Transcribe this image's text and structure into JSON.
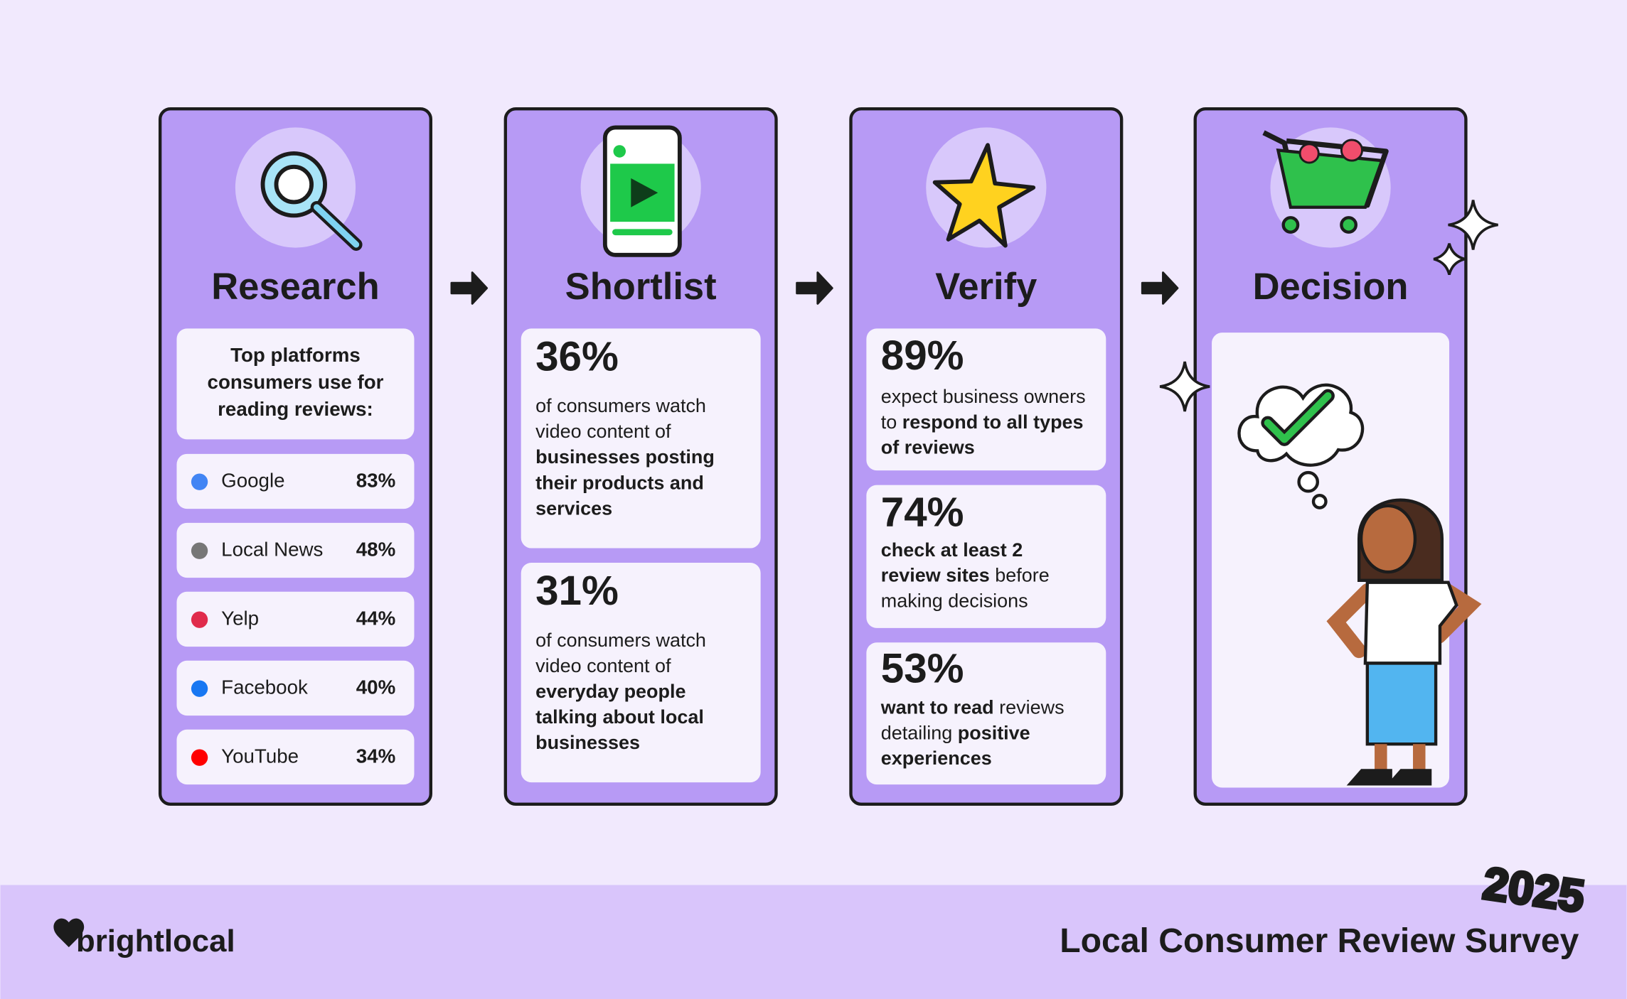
{
  "columns": [
    {
      "title": "Research",
      "intro": [
        "Top platforms",
        "consumers use for",
        "reading reviews:"
      ],
      "platforms": [
        {
          "name": "Google",
          "share": "83%"
        },
        {
          "name": "Local News",
          "share": "48%"
        },
        {
          "name": "Yelp",
          "share": "44%"
        },
        {
          "name": "Facebook",
          "share": "40%"
        },
        {
          "name": "YouTube",
          "share": "34%"
        }
      ]
    },
    {
      "title": "Shortlist",
      "stats": [
        {
          "figure": "36%",
          "lines": [
            [
              {
                "text": "of consumers watch"
              }
            ],
            [
              {
                "text": "video content of"
              }
            ],
            [
              {
                "text": "businesses posting",
                "bold": true
              }
            ],
            [
              {
                "text": "their products and",
                "bold": true
              }
            ],
            [
              {
                "text": "services",
                "bold": true
              }
            ]
          ]
        },
        {
          "figure": "31%",
          "lines": [
            [
              {
                "text": "of consumers watch"
              }
            ],
            [
              {
                "text": "video content of"
              }
            ],
            [
              {
                "text": "everyday people",
                "bold": true
              }
            ],
            [
              {
                "text": "talking about local",
                "bold": true
              }
            ],
            [
              {
                "text": "businesses",
                "bold": true
              }
            ]
          ]
        }
      ]
    },
    {
      "title": "Verify",
      "stats": [
        {
          "figure": "89%",
          "lines": [
            [
              {
                "text": "expect business owners"
              }
            ],
            [
              {
                "text": "to "
              },
              {
                "text": "respond to all types",
                "bold": true
              }
            ],
            [
              {
                "text": "of reviews",
                "bold": true
              }
            ]
          ]
        },
        {
          "figure": "74%",
          "lines": [
            [
              {
                "text": "check at least 2",
                "bold": true
              }
            ],
            [
              {
                "text": "review sites",
                "bold": true
              },
              {
                "text": " before"
              }
            ],
            [
              {
                "text": "making decisions"
              }
            ]
          ]
        },
        {
          "figure": "53%",
          "lines": [
            [
              {
                "text": "want to read",
                "bold": true
              },
              {
                "text": " reviews"
              }
            ],
            [
              {
                "text": "detailing "
              },
              {
                "text": "positive",
                "bold": true
              }
            ],
            [
              {
                "text": "experiences",
                "bold": true
              }
            ]
          ]
        }
      ]
    },
    {
      "title": "Decision"
    }
  ],
  "footer": {
    "brand": "brightlocal",
    "year": "2025",
    "title": "Local Consumer Review Survey"
  }
}
